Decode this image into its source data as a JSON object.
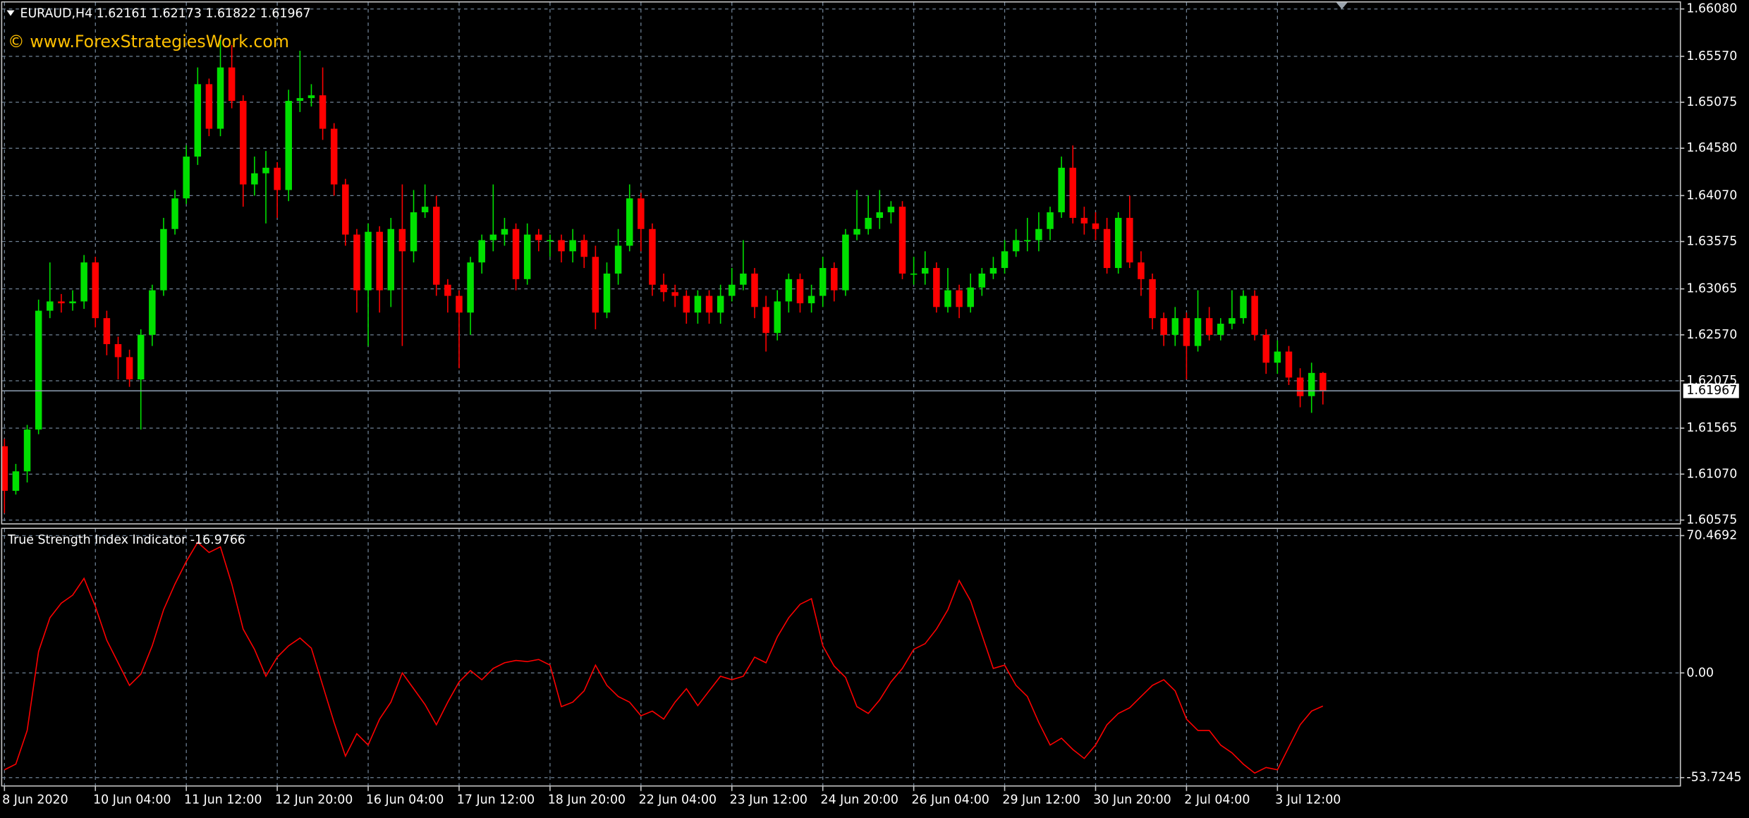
{
  "chart_data": [
    {
      "type": "candlestick",
      "title": "EURAUD,H4  1.62161 1.62173 1.61822 1.61967",
      "annotation": "© www.ForexStrategiesWork.com",
      "current_price": 1.61967,
      "up_color": "#00e000",
      "down_color": "#ff0000",
      "annotation_color": "#ffc000",
      "price_line_color": "#8fa0b4",
      "grid": true,
      "ylim": [
        1.6054,
        1.6615
      ],
      "yticks": [
        {
          "value": 1.6608,
          "label": "1.66080"
        },
        {
          "value": 1.6557,
          "label": "1.65570"
        },
        1.65075,
        {
          "value": 1.6458,
          "label": "1.64580"
        },
        {
          "value": 1.6407,
          "label": "1.64070"
        },
        1.63575,
        1.63065,
        {
          "value": 1.6257,
          "label": "1.62570"
        },
        1.62075,
        1.61565,
        {
          "value": 1.6107,
          "label": "1.61070"
        },
        1.60575
      ],
      "categories": [
        "8 Jun 2020",
        null,
        null,
        null,
        null,
        null,
        null,
        null,
        "10 Jun 04:00",
        null,
        null,
        null,
        null,
        null,
        null,
        null,
        "11 Jun 12:00",
        null,
        null,
        null,
        null,
        null,
        null,
        null,
        "12 Jun 20:00",
        null,
        null,
        null,
        null,
        null,
        null,
        null,
        "16 Jun 04:00",
        null,
        null,
        null,
        null,
        null,
        null,
        null,
        "17 Jun 12:00",
        null,
        null,
        null,
        null,
        null,
        null,
        null,
        "18 Jun 20:00",
        null,
        null,
        null,
        null,
        null,
        null,
        null,
        "22 Jun 04:00",
        null,
        null,
        null,
        null,
        null,
        null,
        null,
        "23 Jun 12:00",
        null,
        null,
        null,
        null,
        null,
        null,
        null,
        "24 Jun 20:00",
        null,
        null,
        null,
        null,
        null,
        null,
        null,
        "26 Jun 04:00",
        null,
        null,
        null,
        null,
        null,
        null,
        null,
        "29 Jun 12:00",
        null,
        null,
        null,
        null,
        null,
        null,
        null,
        "30 Jun 20:00",
        null,
        null,
        null,
        null,
        null,
        null,
        null,
        "2 Jul 04:00",
        null,
        null,
        null,
        null,
        null,
        null,
        null,
        "3 Jul 12:00",
        null,
        null,
        null,
        null
      ],
      "open": [
        1.6137,
        1.6089,
        1.611,
        1.6155,
        1.6283,
        1.6293,
        1.6291,
        1.6293,
        1.6335,
        1.6275,
        1.6247,
        1.6233,
        1.6209,
        1.6257,
        1.6305,
        1.6371,
        1.6404,
        1.6449,
        1.6527,
        1.6479,
        1.6545,
        1.6509,
        1.6419,
        1.6431,
        1.6437,
        1.6413,
        1.6509,
        1.6512,
        1.6515,
        1.6479,
        1.6419,
        1.6365,
        1.6305,
        1.6368,
        1.6305,
        1.6371,
        1.6347,
        1.6389,
        1.6395,
        1.6311,
        1.6299,
        1.6281,
        1.6335,
        1.6359,
        1.6365,
        1.6371,
        1.6317,
        1.6365,
        1.6359,
        1.6359,
        1.6347,
        1.6359,
        1.6341,
        1.6281,
        1.6323,
        1.6353,
        1.6404,
        1.6371,
        1.6311,
        1.6303,
        1.6299,
        1.6281,
        1.6299,
        1.6281,
        1.6299,
        1.6311,
        1.6323,
        1.6287,
        1.6259,
        1.6293,
        1.6317,
        1.6291,
        1.6299,
        1.6329,
        1.6305,
        1.6365,
        1.6371,
        1.6383,
        1.6389,
        1.6395,
        1.6323,
        1.6323,
        1.6329,
        1.6287,
        1.6305,
        1.6287,
        1.6308,
        1.6323,
        1.6329,
        1.6347,
        1.6359,
        1.6359,
        1.6371,
        1.6389,
        1.6437,
        1.6383,
        1.6377,
        1.6371,
        1.6329,
        1.6383,
        1.6335,
        1.6317,
        1.6275,
        1.6257,
        1.6275,
        1.6245,
        1.6275,
        1.6257,
        1.6269,
        1.6275,
        1.6299,
        1.6257,
        1.6227,
        1.6239,
        1.6211,
        1.6191,
        1.6216
      ],
      "high": [
        1.6145,
        1.6118,
        1.616,
        1.6295,
        1.6335,
        1.6301,
        1.6305,
        1.6343,
        1.6341,
        1.6283,
        1.6255,
        1.6241,
        1.6263,
        1.6311,
        1.6383,
        1.6413,
        1.6461,
        1.6545,
        1.6533,
        1.6575,
        1.6569,
        1.6515,
        1.6449,
        1.6455,
        1.6443,
        1.6521,
        1.6563,
        1.6527,
        1.6545,
        1.6485,
        1.6425,
        1.6371,
        1.6377,
        1.6374,
        1.6383,
        1.6419,
        1.6413,
        1.6419,
        1.6407,
        1.6317,
        1.6305,
        1.6341,
        1.6365,
        1.6419,
        1.6383,
        1.6377,
        1.6377,
        1.6371,
        1.6365,
        1.6365,
        1.6371,
        1.6365,
        1.6353,
        1.6335,
        1.6371,
        1.6419,
        1.641,
        1.6377,
        1.6323,
        1.6311,
        1.6305,
        1.6305,
        1.6305,
        1.6311,
        1.6329,
        1.6359,
        1.6329,
        1.6299,
        1.6305,
        1.6323,
        1.6323,
        1.6311,
        1.6341,
        1.6335,
        1.6371,
        1.6413,
        1.6407,
        1.6413,
        1.6401,
        1.6401,
        1.6341,
        1.6347,
        1.6335,
        1.6329,
        1.6311,
        1.6323,
        1.6329,
        1.6341,
        1.6359,
        1.6371,
        1.6383,
        1.6389,
        1.6395,
        1.6449,
        1.6461,
        1.6395,
        1.6389,
        1.6383,
        1.6389,
        1.6407,
        1.6347,
        1.6323,
        1.6281,
        1.6287,
        1.6281,
        1.6305,
        1.6287,
        1.6275,
        1.6305,
        1.6305,
        1.6305,
        1.6263,
        1.6251,
        1.6245,
        1.6221,
        1.6227,
        1.6217
      ],
      "low": [
        1.6065,
        1.6085,
        1.6098,
        1.615,
        1.6275,
        1.6281,
        1.6283,
        1.6285,
        1.6265,
        1.6235,
        1.6209,
        1.6201,
        1.6155,
        1.6245,
        1.6299,
        1.6365,
        1.6398,
        1.644,
        1.6471,
        1.6471,
        1.6501,
        1.6395,
        1.6407,
        1.6377,
        1.6383,
        1.6401,
        1.6497,
        1.6503,
        1.6467,
        1.6407,
        1.6353,
        1.6281,
        1.6245,
        1.6281,
        1.6287,
        1.6245,
        1.6335,
        1.6383,
        1.6299,
        1.6281,
        1.6221,
        1.6257,
        1.6323,
        1.6347,
        1.6353,
        1.6305,
        1.6311,
        1.6347,
        1.6341,
        1.6335,
        1.6335,
        1.6329,
        1.6263,
        1.6275,
        1.6311,
        1.6347,
        1.6347,
        1.6299,
        1.6293,
        1.6287,
        1.6269,
        1.6269,
        1.6269,
        1.6269,
        1.6293,
        1.6305,
        1.6275,
        1.6239,
        1.6251,
        1.6281,
        1.6281,
        1.6281,
        1.6287,
        1.6293,
        1.6299,
        1.6359,
        1.6365,
        1.6371,
        1.6377,
        1.6317,
        1.6311,
        1.6311,
        1.6281,
        1.6281,
        1.6275,
        1.6281,
        1.6299,
        1.6317,
        1.6323,
        1.6341,
        1.6347,
        1.6347,
        1.6359,
        1.6383,
        1.6377,
        1.6365,
        1.6359,
        1.6323,
        1.6323,
        1.6329,
        1.6299,
        1.6263,
        1.6245,
        1.6245,
        1.6209,
        1.6239,
        1.6251,
        1.6251,
        1.6263,
        1.6269,
        1.6251,
        1.6215,
        1.6215,
        1.6203,
        1.6179,
        1.6173,
        1.6182
      ],
      "close": [
        1.6089,
        1.611,
        1.6155,
        1.6283,
        1.6293,
        1.6291,
        1.6293,
        1.6335,
        1.6275,
        1.6247,
        1.6233,
        1.6209,
        1.6257,
        1.6305,
        1.6371,
        1.6404,
        1.6449,
        1.6527,
        1.6479,
        1.6545,
        1.6509,
        1.6419,
        1.6431,
        1.6437,
        1.6413,
        1.6509,
        1.6512,
        1.6515,
        1.6479,
        1.6419,
        1.6365,
        1.6305,
        1.6368,
        1.6305,
        1.6371,
        1.6347,
        1.6389,
        1.6395,
        1.6311,
        1.6299,
        1.6281,
        1.6335,
        1.6359,
        1.6365,
        1.6371,
        1.6317,
        1.6365,
        1.6359,
        1.6359,
        1.6347,
        1.6359,
        1.6341,
        1.6281,
        1.6323,
        1.6353,
        1.6404,
        1.6371,
        1.6311,
        1.6303,
        1.6299,
        1.6281,
        1.6299,
        1.6281,
        1.6299,
        1.6311,
        1.6323,
        1.6287,
        1.6259,
        1.6293,
        1.6317,
        1.6291,
        1.6299,
        1.6329,
        1.6305,
        1.6365,
        1.6371,
        1.6383,
        1.6389,
        1.6395,
        1.6323,
        1.6323,
        1.6329,
        1.6287,
        1.6305,
        1.6287,
        1.6308,
        1.6323,
        1.6329,
        1.6347,
        1.6359,
        1.6359,
        1.6371,
        1.6389,
        1.6437,
        1.6383,
        1.6377,
        1.6371,
        1.6329,
        1.6383,
        1.6335,
        1.6317,
        1.6275,
        1.6257,
        1.6275,
        1.6245,
        1.6275,
        1.6257,
        1.6269,
        1.6275,
        1.6299,
        1.6257,
        1.6227,
        1.6239,
        1.6211,
        1.6191,
        1.6216,
        1.6197
      ]
    },
    {
      "type": "line",
      "title": "True Strength Index Indicator -16.9766",
      "color": "#ff0000",
      "grid": true,
      "ylim": [
        -58.3,
        73.9
      ],
      "yticks": [
        70.4692,
        {
          "value": 0,
          "label": "0.00"
        },
        -53.7245
      ],
      "values": [
        -49.7,
        -46.8,
        -29.5,
        11.0,
        28.3,
        35.8,
        39.9,
        48.5,
        34.1,
        16.8,
        5.2,
        -6.4,
        -0.6,
        13.9,
        32.4,
        45.6,
        57.2,
        67.0,
        61.8,
        64.7,
        45.6,
        22.5,
        12.1,
        -1.7,
        8.1,
        13.9,
        17.9,
        12.7,
        -6.4,
        -25.4,
        -42.7,
        -31.2,
        -37.0,
        -23.7,
        -15.0,
        0.0,
        -8.1,
        -16.2,
        -26.6,
        -15.0,
        -4.6,
        1.2,
        -3.5,
        2.3,
        5.2,
        6.4,
        5.8,
        6.9,
        4.0,
        -17.3,
        -15.0,
        -9.2,
        4.0,
        -6.4,
        -12.1,
        -15.0,
        -22.0,
        -19.6,
        -23.7,
        -15.0,
        -8.1,
        -16.8,
        -9.2,
        -1.7,
        -3.5,
        -1.7,
        8.1,
        5.2,
        18.5,
        28.3,
        35.2,
        38.1,
        13.9,
        3.5,
        -2.3,
        -17.3,
        -20.8,
        -13.9,
        -4.6,
        2.3,
        12.1,
        15.0,
        22.5,
        32.4,
        47.4,
        37.0,
        19.6,
        2.3,
        4.0,
        -6.4,
        -12.1,
        -25.4,
        -37.0,
        -33.5,
        -39.3,
        -43.9,
        -37.0,
        -26.6,
        -20.8,
        -17.9,
        -12.1,
        -6.4,
        -3.5,
        -9.2,
        -23.7,
        -29.5,
        -29.5,
        -37.0,
        -41.0,
        -46.8,
        -51.4,
        -48.5,
        -49.7,
        -38.1,
        -26.6,
        -19.6,
        -17.0
      ]
    }
  ]
}
